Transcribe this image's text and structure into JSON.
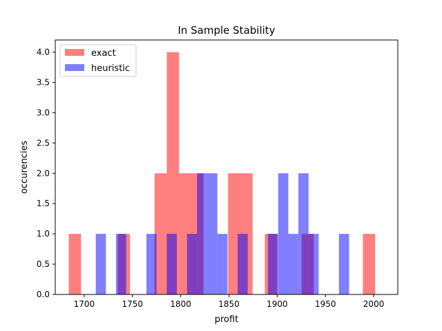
{
  "chart_data": {
    "type": "bar",
    "subtype": "histogram-overlay",
    "title": "In Sample Stability",
    "xlabel": "profit",
    "ylabel": "occurencies",
    "xlim": [
      1670,
      2025
    ],
    "ylim": [
      0,
      4.2
    ],
    "xticks": [
      1700,
      1750,
      1800,
      1850,
      1900,
      1950,
      2000
    ],
    "yticks": [
      0.0,
      0.5,
      1.0,
      1.5,
      2.0,
      2.5,
      3.0,
      3.5,
      4.0
    ],
    "xtick_labels": [
      "1700",
      "1750",
      "1800",
      "1850",
      "1900",
      "1950",
      "2000"
    ],
    "ytick_labels": [
      "0.0",
      "0.5",
      "1.0",
      "1.5",
      "2.0",
      "2.5",
      "3.0",
      "3.5",
      "4.0"
    ],
    "grid": false,
    "legend_position": "top-left",
    "series": [
      {
        "name": "exact",
        "color": "#ff0000",
        "alpha": 0.5,
        "bins": [
          {
            "x0": 1684.0,
            "x1": 1696.7,
            "count": 1
          },
          {
            "x0": 1734.8,
            "x1": 1747.5,
            "count": 1
          },
          {
            "x0": 1772.9,
            "x1": 1785.6,
            "count": 2
          },
          {
            "x0": 1785.6,
            "x1": 1798.3,
            "count": 4
          },
          {
            "x0": 1798.3,
            "x1": 1811.0,
            "count": 2
          },
          {
            "x0": 1811.0,
            "x1": 1823.7,
            "count": 2
          },
          {
            "x0": 1849.1,
            "x1": 1861.8,
            "count": 2
          },
          {
            "x0": 1861.8,
            "x1": 1874.5,
            "count": 2
          },
          {
            "x0": 1887.2,
            "x1": 1899.9,
            "count": 1
          },
          {
            "x0": 1925.3,
            "x1": 1938.0,
            "count": 1
          },
          {
            "x0": 1988.8,
            "x1": 2001.5,
            "count": 1
          }
        ]
      },
      {
        "name": "heuristic",
        "color": "#0000ff",
        "alpha": 0.5,
        "bins": [
          {
            "x0": 1712.0,
            "x1": 1722.5,
            "count": 1
          },
          {
            "x0": 1733.0,
            "x1": 1743.5,
            "count": 1
          },
          {
            "x0": 1764.5,
            "x1": 1775.0,
            "count": 1
          },
          {
            "x0": 1785.5,
            "x1": 1796.0,
            "count": 1
          },
          {
            "x0": 1806.5,
            "x1": 1817.0,
            "count": 1
          },
          {
            "x0": 1817.0,
            "x1": 1827.5,
            "count": 2
          },
          {
            "x0": 1827.5,
            "x1": 1838.0,
            "count": 2
          },
          {
            "x0": 1838.0,
            "x1": 1848.5,
            "count": 1
          },
          {
            "x0": 1859.0,
            "x1": 1869.5,
            "count": 1
          },
          {
            "x0": 1890.5,
            "x1": 1901.0,
            "count": 1
          },
          {
            "x0": 1901.0,
            "x1": 1911.5,
            "count": 2
          },
          {
            "x0": 1911.5,
            "x1": 1922.0,
            "count": 1
          },
          {
            "x0": 1922.0,
            "x1": 1932.5,
            "count": 2
          },
          {
            "x0": 1932.5,
            "x1": 1943.0,
            "count": 1
          },
          {
            "x0": 1964.0,
            "x1": 1974.5,
            "count": 1
          }
        ]
      }
    ]
  }
}
